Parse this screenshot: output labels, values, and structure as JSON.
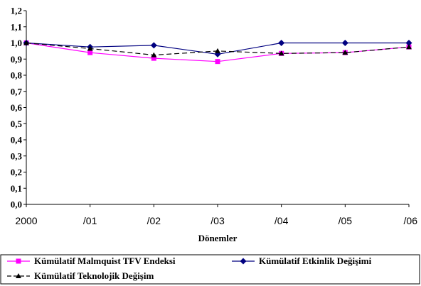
{
  "chart_data": {
    "type": "line",
    "x": [
      "2000",
      "/01",
      "/02",
      "/03",
      "/04",
      "/05",
      "/06"
    ],
    "xlabel": "Dönemler",
    "ylabel": "",
    "ylim": [
      0.0,
      1.2
    ],
    "yticks": [
      "0,0",
      "0,1",
      "0,2",
      "0,3",
      "0,4",
      "0,5",
      "0,6",
      "0,7",
      "0,8",
      "0,9",
      "1,0",
      "1,1",
      "1,2"
    ],
    "grid": false,
    "legend_position": "bottom",
    "series": [
      {
        "name": "Kümülatif Malmquist TFV Endeksi",
        "values": [
          1.0,
          0.94,
          0.905,
          0.885,
          0.935,
          0.94,
          0.975
        ],
        "color": "#ff00ff",
        "marker": "square",
        "dash": "solid"
      },
      {
        "name": "Kümülatif Etkinlik Değişimi",
        "values": [
          1.0,
          0.975,
          0.985,
          0.93,
          1.0,
          1.0,
          1.0
        ],
        "color": "#000080",
        "marker": "diamond",
        "dash": "solid"
      },
      {
        "name": "Kümülatif Teknolojik Değişim",
        "values": [
          1.0,
          0.965,
          0.925,
          0.95,
          0.935,
          0.94,
          0.975
        ],
        "color": "#000000",
        "marker": "triangle",
        "dash": "dashed"
      }
    ]
  }
}
